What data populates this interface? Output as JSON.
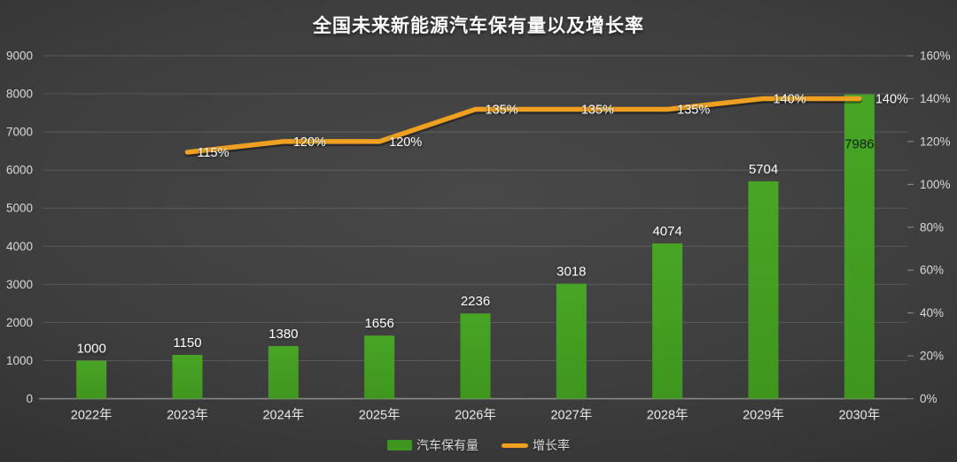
{
  "title": "全国未来新能源汽车保有量以及增长率",
  "chart_data": {
    "type": "bar+line",
    "categories": [
      "2022年",
      "2023年",
      "2024年",
      "2025年",
      "2026年",
      "2027年",
      "2028年",
      "2029年",
      "2030年"
    ],
    "series": [
      {
        "name": "汽车保有量",
        "type": "bar",
        "axis": "left",
        "color": "#3f961e",
        "values": [
          1000,
          1150,
          1380,
          1656,
          2236,
          3018,
          4074,
          5704,
          7986
        ],
        "value_labels": [
          "1000",
          "1150",
          "1380",
          "1656",
          "2236",
          "3018",
          "4074",
          "5704",
          "7986"
        ]
      },
      {
        "name": "增长率",
        "type": "line",
        "axis": "right",
        "color": "#efa020",
        "values": [
          null,
          115,
          120,
          120,
          135,
          135,
          135,
          140,
          140
        ],
        "value_labels": [
          "",
          "115%",
          "120%",
          "120%",
          "135%",
          "135%",
          "135%",
          "140%",
          "140%"
        ]
      }
    ],
    "left_axis": {
      "min": 0,
      "max": 9000,
      "step": 1000,
      "tick_labels": [
        "0",
        "1000",
        "2000",
        "3000",
        "4000",
        "5000",
        "6000",
        "7000",
        "8000",
        "9000"
      ]
    },
    "right_axis": {
      "min": 0,
      "max": 160,
      "step": 20,
      "tick_labels": [
        "0%",
        "20%",
        "40%",
        "60%",
        "80%",
        "100%",
        "120%",
        "140%",
        "160%"
      ]
    },
    "grid": true,
    "legend_position": "bottom"
  },
  "legend": {
    "items": [
      {
        "label": "汽车保有量",
        "color": "#3f961e",
        "marker": "bar"
      },
      {
        "label": "增长率",
        "color": "#efa020",
        "marker": "line"
      }
    ]
  },
  "colors": {
    "background_center": "#484848",
    "background_edge": "#232323",
    "grid": "rgba(255,255,255,0.14)",
    "baseline": "rgba(255,255,255,0.42)",
    "axis_text": "#d9d9d9",
    "bar": "#3f961e",
    "bar_top": "#48a524",
    "line": "#efa020",
    "value_label": "#ffffff",
    "inside_value_label": "#0e2103"
  }
}
